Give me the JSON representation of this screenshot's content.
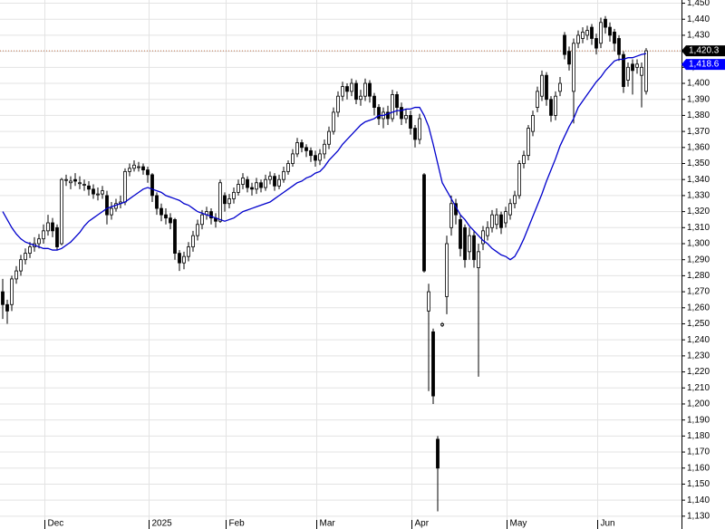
{
  "chart_data": {
    "type": "candlestick",
    "categories": [
      null,
      null,
      null,
      null,
      null,
      null,
      null,
      null,
      null,
      null,
      "Dec",
      null,
      null,
      null,
      null,
      null,
      null,
      null,
      null,
      null,
      null,
      null,
      null,
      null,
      null,
      null,
      null,
      null,
      null,
      null,
      null,
      null,
      null,
      "2025",
      null,
      null,
      null,
      null,
      null,
      null,
      null,
      null,
      null,
      null,
      null,
      null,
      null,
      null,
      null,
      null,
      "Feb",
      null,
      null,
      null,
      null,
      null,
      null,
      null,
      null,
      null,
      null,
      null,
      null,
      null,
      null,
      null,
      null,
      null,
      null,
      null,
      "Mar",
      null,
      null,
      null,
      null,
      null,
      null,
      null,
      null,
      null,
      null,
      null,
      null,
      null,
      null,
      null,
      null,
      null,
      null,
      null,
      null,
      "Apr",
      null,
      null,
      null,
      null,
      null,
      null,
      null,
      null,
      null,
      null,
      null,
      null,
      null,
      null,
      null,
      null,
      null,
      null,
      null,
      null,
      "May",
      null,
      null,
      null,
      null,
      null,
      null,
      null,
      null,
      null,
      null,
      null,
      null,
      null,
      null,
      null,
      null,
      null,
      null,
      null,
      "Jun",
      null,
      null,
      null,
      null,
      null,
      null,
      null,
      null,
      null,
      null
    ],
    "open": [
      1270,
      1262,
      1262,
      1278,
      1283,
      1290,
      1294,
      1298,
      1300,
      1303,
      1308,
      1313,
      1310,
      1300,
      1340,
      1338,
      1340,
      1338,
      1337,
      1336,
      1334,
      1331,
      1331,
      1330,
      1318,
      1322,
      1325,
      1326,
      1345,
      1347,
      1348,
      1348,
      1346,
      1343,
      1330,
      1322,
      1318,
      1316,
      1315,
      1294,
      1288,
      1292,
      1298,
      1305,
      1312,
      1318,
      1320,
      1316,
      1314,
      1330,
      1325,
      1328,
      1332,
      1337,
      1340,
      1335,
      1334,
      1338,
      1335,
      1340,
      1342,
      1336,
      1340,
      1345,
      1350,
      1356,
      1363,
      1360,
      1358,
      1355,
      1352,
      1356,
      1362,
      1370,
      1382,
      1392,
      1398,
      1395,
      1400,
      1390,
      1392,
      1400,
      1392,
      1385,
      1378,
      1382,
      1378,
      1393,
      1385,
      1378,
      1380,
      1372,
      1365,
      1343,
      1258,
      1245,
      1178,
      1249,
      1267,
      1310,
      1325,
      1315,
      1310,
      1295,
      1305,
      1285,
      1300,
      1305,
      1310,
      1312,
      1318,
      1313,
      1318,
      1325,
      1330,
      1350,
      1355,
      1370,
      1385,
      1392,
      1405,
      1390,
      1380,
      1395,
      1430,
      1420,
      1395,
      1425,
      1428,
      1430,
      1435,
      1428,
      1425,
      1440,
      1435,
      1432,
      1428,
      1418,
      1402,
      1412,
      1410,
      1405,
      1395
    ],
    "high": [
      1278,
      1265,
      1280,
      1286,
      1293,
      1297,
      1301,
      1304,
      1306,
      1312,
      1318,
      1316,
      1312,
      1341,
      1343,
      1342,
      1344,
      1342,
      1340,
      1339,
      1337,
      1335,
      1336,
      1333,
      1326,
      1328,
      1330,
      1347,
      1350,
      1352,
      1351,
      1350,
      1348,
      1344,
      1332,
      1325,
      1322,
      1319,
      1316,
      1296,
      1295,
      1301,
      1308,
      1315,
      1321,
      1323,
      1322,
      1319,
      1340,
      1332,
      1331,
      1335,
      1340,
      1344,
      1342,
      1338,
      1341,
      1340,
      1343,
      1345,
      1344,
      1343,
      1348,
      1352,
      1359,
      1366,
      1365,
      1362,
      1360,
      1358,
      1359,
      1365,
      1373,
      1385,
      1395,
      1401,
      1400,
      1403,
      1402,
      1396,
      1403,
      1402,
      1394,
      1387,
      1385,
      1386,
      1396,
      1395,
      1388,
      1384,
      1383,
      1374,
      1381,
      1344,
      1275,
      1247,
      1180,
      1251,
      1305,
      1330,
      1328,
      1318,
      1312,
      1310,
      1308,
      1300,
      1311,
      1314,
      1321,
      1322,
      1320,
      1323,
      1328,
      1333,
      1352,
      1358,
      1374,
      1383,
      1398,
      1408,
      1407,
      1392,
      1395,
      1404,
      1432,
      1423,
      1428,
      1433,
      1435,
      1436,
      1437,
      1431,
      1441,
      1442,
      1438,
      1434,
      1430,
      1420,
      1413,
      1415,
      1415,
      1413,
      1422
    ],
    "low": [
      1253,
      1250,
      1258,
      1275,
      1280,
      1287,
      1291,
      1295,
      1297,
      1300,
      1305,
      1304,
      1296,
      1299,
      1336,
      1334,
      1336,
      1334,
      1333,
      1330,
      1328,
      1327,
      1328,
      1312,
      1315,
      1320,
      1322,
      1324,
      1342,
      1345,
      1345,
      1343,
      1338,
      1326,
      1318,
      1314,
      1312,
      1309,
      1290,
      1283,
      1284,
      1289,
      1295,
      1302,
      1309,
      1315,
      1312,
      1310,
      1313,
      1320,
      1322,
      1325,
      1330,
      1334,
      1332,
      1330,
      1331,
      1332,
      1333,
      1337,
      1333,
      1334,
      1338,
      1343,
      1348,
      1354,
      1357,
      1354,
      1351,
      1348,
      1349,
      1353,
      1359,
      1368,
      1379,
      1389,
      1390,
      1392,
      1387,
      1386,
      1389,
      1388,
      1380,
      1374,
      1372,
      1374,
      1376,
      1380,
      1374,
      1375,
      1368,
      1360,
      1362,
      1282,
      1208,
      1200,
      1133,
      1248,
      1256,
      1305,
      1312,
      1292,
      1285,
      1290,
      1285,
      1217,
      1296,
      1302,
      1307,
      1309,
      1306,
      1310,
      1315,
      1322,
      1328,
      1347,
      1352,
      1367,
      1382,
      1389,
      1386,
      1376,
      1377,
      1392,
      1415,
      1408,
      1375,
      1422,
      1425,
      1427,
      1424,
      1418,
      1422,
      1431,
      1426,
      1420,
      1414,
      1394,
      1398,
      1393,
      1406,
      1385,
      1393
    ],
    "close": [
      1262,
      1258,
      1278,
      1283,
      1290,
      1294,
      1298,
      1300,
      1303,
      1308,
      1313,
      1308,
      1298,
      1340,
      1340,
      1339,
      1339,
      1338,
      1337,
      1334,
      1331,
      1331,
      1333,
      1318,
      1322,
      1325,
      1326,
      1345,
      1347,
      1349,
      1348,
      1346,
      1343,
      1330,
      1322,
      1318,
      1316,
      1313,
      1294,
      1288,
      1292,
      1298,
      1305,
      1312,
      1318,
      1320,
      1316,
      1314,
      1338,
      1325,
      1328,
      1332,
      1337,
      1341,
      1335,
      1334,
      1338,
      1335,
      1340,
      1342,
      1336,
      1340,
      1345,
      1350,
      1356,
      1363,
      1360,
      1358,
      1355,
      1352,
      1356,
      1362,
      1370,
      1382,
      1392,
      1398,
      1395,
      1400,
      1390,
      1392,
      1400,
      1392,
      1385,
      1378,
      1382,
      1378,
      1393,
      1385,
      1378,
      1380,
      1372,
      1365,
      1378,
      1283,
      1270,
      1205,
      1160,
      1250,
      1300,
      1325,
      1318,
      1297,
      1290,
      1305,
      1290,
      1295,
      1308,
      1310,
      1318,
      1318,
      1310,
      1320,
      1325,
      1330,
      1350,
      1355,
      1372,
      1380,
      1395,
      1405,
      1390,
      1380,
      1392,
      1400,
      1418,
      1412,
      1425,
      1430,
      1432,
      1433,
      1428,
      1422,
      1438,
      1435,
      1430,
      1425,
      1418,
      1398,
      1410,
      1408,
      1412,
      1410,
      1420.3
    ],
    "up_color": "#ffffff",
    "down_color": "#000000",
    "overlay": {
      "color": "#0000cc",
      "values": [
        1320,
        1315,
        1310,
        1306,
        1303,
        1301,
        1300,
        1299,
        1298,
        1297,
        1297,
        1296,
        1296,
        1297,
        1299,
        1301,
        1304,
        1307,
        1311,
        1314,
        1316,
        1318,
        1320,
        1322,
        1323,
        1324,
        1325,
        1326,
        1328,
        1330,
        1332,
        1334,
        1335,
        1334,
        1333,
        1332,
        1330,
        1329,
        1328,
        1327,
        1325,
        1324,
        1322,
        1320,
        1319,
        1318,
        1317,
        1316,
        1315,
        1314,
        1315,
        1316,
        1318,
        1320,
        1321,
        1322,
        1323,
        1324,
        1325,
        1326,
        1328,
        1330,
        1332,
        1334,
        1336,
        1338,
        1339,
        1341,
        1342,
        1344,
        1345,
        1348,
        1352,
        1355,
        1358,
        1362,
        1365,
        1368,
        1371,
        1374,
        1376,
        1377,
        1378,
        1380,
        1380,
        1381,
        1382,
        1383,
        1383,
        1384,
        1384,
        1385,
        1385,
        1380,
        1373,
        1362,
        1350,
        1338,
        1333,
        1328,
        1323,
        1318,
        1315,
        1311,
        1308,
        1305,
        1302,
        1300,
        1297,
        1295,
        1293,
        1292,
        1290,
        1292,
        1297,
        1303,
        1310,
        1317,
        1324,
        1331,
        1339,
        1346,
        1353,
        1361,
        1367,
        1373,
        1378,
        1385,
        1389,
        1393,
        1397,
        1401,
        1404,
        1408,
        1411,
        1414,
        1415,
        1415,
        1416,
        1416,
        1417,
        1418,
        1418.6
      ]
    },
    "markers": [
      {
        "value": 1420.3,
        "label": "1,420.3",
        "color": "#000000"
      },
      {
        "value": 1418.6,
        "label": "1,418.6",
        "color": "#0000ff"
      }
    ],
    "ylim": [
      1122,
      1452
    ],
    "yticks": [
      {
        "value": 1130,
        "label": "1,130"
      },
      {
        "value": 1140,
        "label": "1,140"
      },
      {
        "value": 1150,
        "label": "1,150"
      },
      {
        "value": 1160,
        "label": "1,160"
      },
      {
        "value": 1170,
        "label": "1,170"
      },
      {
        "value": 1180,
        "label": "1,180"
      },
      {
        "value": 1190,
        "label": "1,190"
      },
      {
        "value": 1200,
        "label": "1,200"
      },
      {
        "value": 1210,
        "label": "1,210"
      },
      {
        "value": 1220,
        "label": "1,220"
      },
      {
        "value": 1230,
        "label": "1,230"
      },
      {
        "value": 1240,
        "label": "1,240"
      },
      {
        "value": 1250,
        "label": "1,250"
      },
      {
        "value": 1260,
        "label": "1,260"
      },
      {
        "value": 1270,
        "label": "1,270"
      },
      {
        "value": 1280,
        "label": "1,280"
      },
      {
        "value": 1290,
        "label": "1,290"
      },
      {
        "value": 1300,
        "label": "1,300"
      },
      {
        "value": 1310,
        "label": "1,310"
      },
      {
        "value": 1320,
        "label": "1,320"
      },
      {
        "value": 1330,
        "label": "1,330"
      },
      {
        "value": 1340,
        "label": "1,340"
      },
      {
        "value": 1350,
        "label": "1,350"
      },
      {
        "value": 1360,
        "label": "1,360"
      },
      {
        "value": 1370,
        "label": "1,370"
      },
      {
        "value": 1380,
        "label": "1,380"
      },
      {
        "value": 1390,
        "label": "1,390"
      },
      {
        "value": 1400,
        "label": "1,400"
      },
      {
        "value": 1410,
        "label": "1,410"
      },
      {
        "value": 1420,
        "label": "1,420"
      },
      {
        "value": 1430,
        "label": "1,430"
      },
      {
        "value": 1440,
        "label": "1,440"
      },
      {
        "value": 1450,
        "label": "1,450"
      }
    ],
    "grid": true
  }
}
